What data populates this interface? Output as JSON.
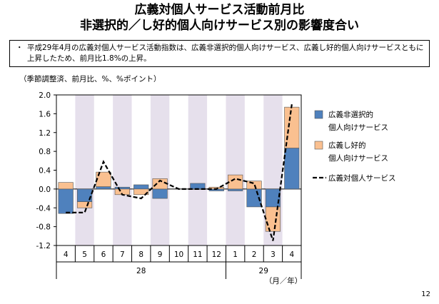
{
  "title_line1": "広義対個人サービス活動前月比",
  "title_line2": "非選択的／し好的個人向けサービス別の影響度合い",
  "note_bullet": "・",
  "note_text": "平成29年4月の広義対個人サービス活動指数は、広義非選択的個人向けサービス、広義し好的個人向けサービスともに上昇したため、前月比1.8%の上昇。",
  "unit_label": "（季節調整済、前月比、%、%ポイント）",
  "page_number": "12",
  "colors": {
    "nonselective": "#4f81bd",
    "discretionary": "#fac090",
    "stripe": "#e6e0ec",
    "line": "#000000"
  },
  "chart_data": {
    "type": "bar",
    "stacked": true,
    "categories": [
      "4",
      "5",
      "6",
      "7",
      "8",
      "9",
      "10",
      "11",
      "12",
      "1",
      "2",
      "3",
      "4"
    ],
    "year_labels": [
      {
        "label": "28",
        "span": [
          0,
          8
        ]
      },
      {
        "label": "29",
        "span": [
          9,
          12
        ]
      }
    ],
    "x_unit_label": "（月／年）",
    "shaded_categories": [
      1,
      3,
      5,
      7,
      9,
      11
    ],
    "series": [
      {
        "name": "広義非選択的\n個人向けサービス",
        "kind": "bar",
        "values": [
          -0.52,
          -0.27,
          0.05,
          0.04,
          0.09,
          -0.2,
          0.0,
          0.12,
          -0.04,
          -0.04,
          -0.38,
          -0.38,
          0.87
        ]
      },
      {
        "name": "広義し好的\n個人向けサービス",
        "kind": "bar",
        "values": [
          0.14,
          -0.13,
          0.31,
          -0.12,
          -0.12,
          0.22,
          0.0,
          -0.01,
          0.04,
          0.3,
          0.17,
          -0.52,
          0.87
        ]
      },
      {
        "name": "広義対個人サービス",
        "kind": "line",
        "values": [
          -0.5,
          -0.5,
          0.58,
          -0.12,
          -0.2,
          0.18,
          0.0,
          0.0,
          0.0,
          0.22,
          0.12,
          -1.1,
          1.8
        ]
      }
    ],
    "ylim": [
      -1.2,
      2.0
    ],
    "yticks": [
      "2.0",
      "1.6",
      "1.2",
      "0.8",
      "0.4",
      "0.0",
      "-0.4",
      "-0.8",
      "-1.2"
    ],
    "ytick_values": [
      2.0,
      1.6,
      1.2,
      0.8,
      0.4,
      0.0,
      -0.4,
      -0.8,
      -1.2
    ],
    "legend_position": "right"
  }
}
